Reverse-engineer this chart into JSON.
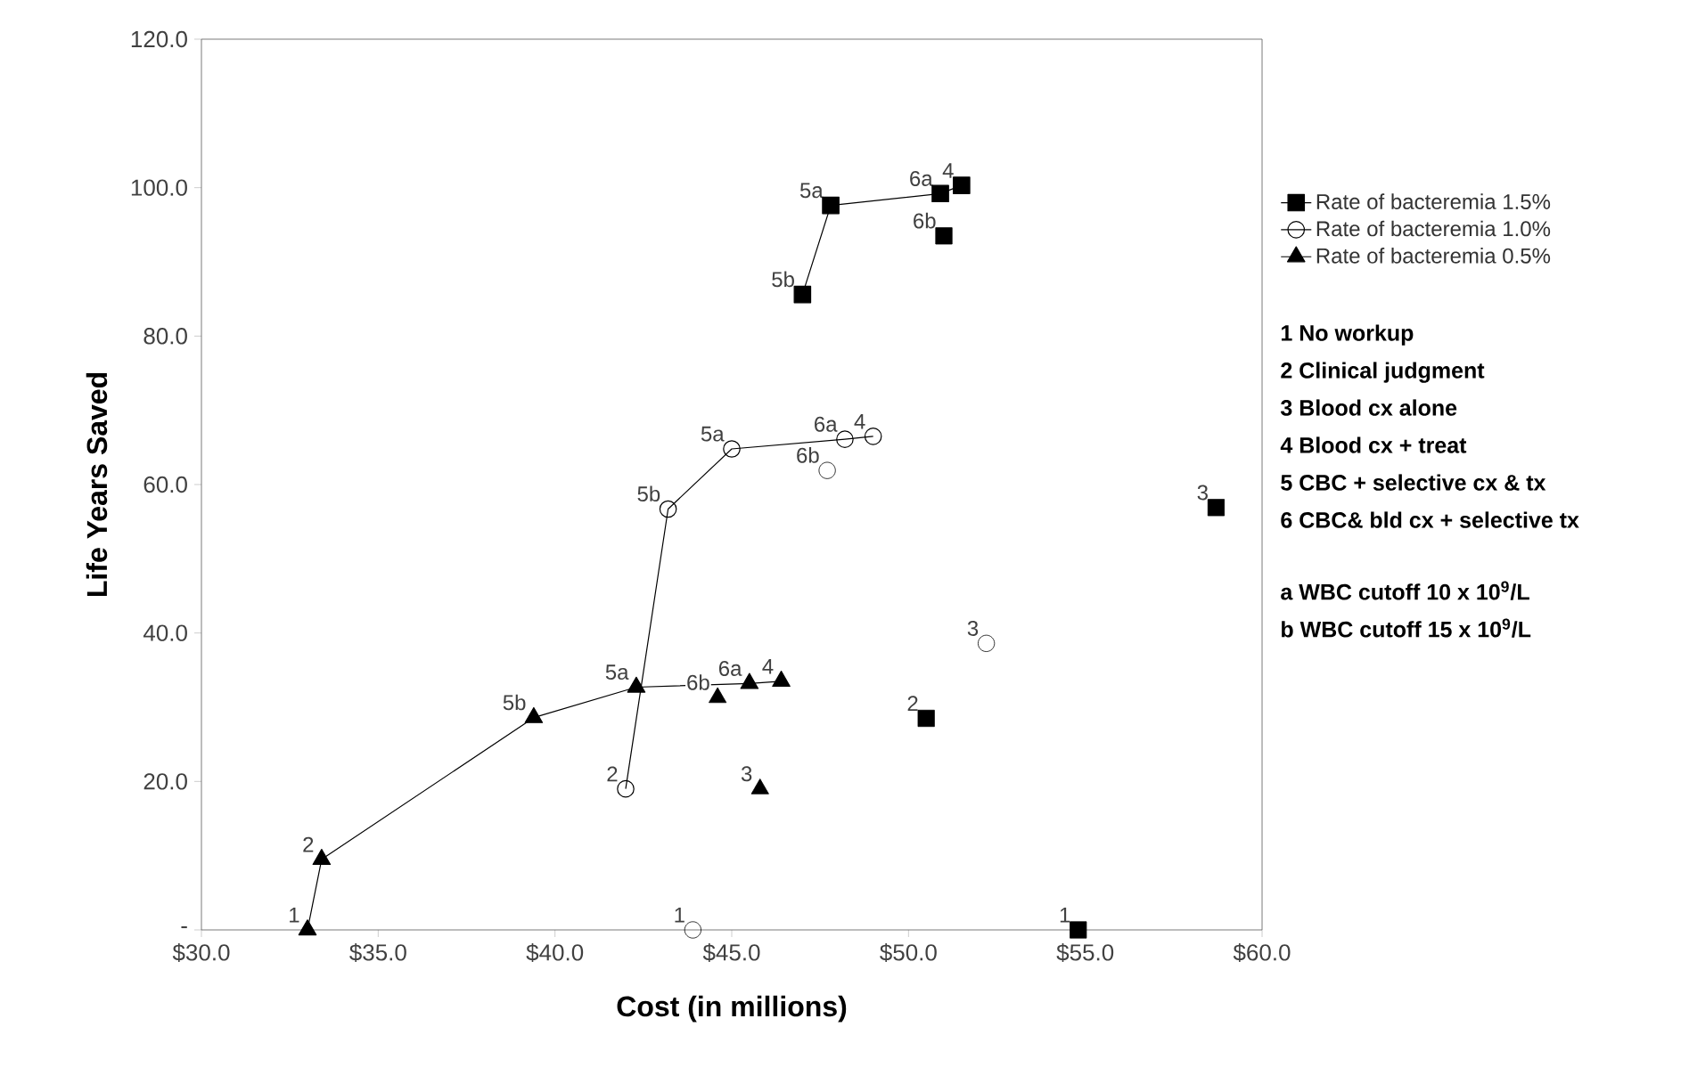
{
  "chart_data": {
    "type": "line",
    "xlabel": "Cost (in millions)",
    "ylabel": "Life Years Saved",
    "xlim": [
      30,
      60
    ],
    "ylim": [
      0,
      120
    ],
    "xticks": [
      {
        "value": 30,
        "label": "$30.0"
      },
      {
        "value": 35,
        "label": "$35.0"
      },
      {
        "value": 40,
        "label": "$40.0"
      },
      {
        "value": 45,
        "label": "$45.0"
      },
      {
        "value": 50,
        "label": "$50.0"
      },
      {
        "value": 55,
        "label": "$55.0"
      },
      {
        "value": 60,
        "label": "$60.0"
      }
    ],
    "yticks": [
      {
        "value": 0,
        "label": "-"
      },
      {
        "value": 20,
        "label": "20.0"
      },
      {
        "value": 40,
        "label": "40.0"
      },
      {
        "value": 60,
        "label": "60.0"
      },
      {
        "value": 80,
        "label": "80.0"
      },
      {
        "value": 100,
        "label": "100.0"
      },
      {
        "value": 120,
        "label": "120.0"
      }
    ],
    "legend": "right",
    "series": [
      {
        "name": "Rate of bacteremia 1.5%",
        "marker": "square",
        "color": "#000000",
        "x": [
          47.0,
          47.8,
          50.9,
          51.5
        ],
        "values": [
          85.6,
          97.6,
          99.2,
          100.3
        ]
      },
      {
        "name": "Rate of bacteremia 1.0%",
        "marker": "circle",
        "color": "#000000",
        "x": [
          42.0,
          43.2,
          45.0,
          48.2,
          49.0
        ],
        "values": [
          19.0,
          56.7,
          64.8,
          66.1,
          66.5
        ]
      },
      {
        "name": "Rate of bacteremia 0.5%",
        "marker": "triangle",
        "color": "#000000",
        "x": [
          33.0,
          33.4,
          39.4,
          42.3,
          45.5,
          46.4
        ],
        "values": [
          0,
          9.5,
          28.6,
          32.7,
          33.2,
          33.5
        ]
      },
      {
        "type": "scatter",
        "marker": "square",
        "color": "#000000",
        "x": [
          51.0,
          50.5,
          54.8,
          58.7
        ],
        "values": [
          93.5,
          28.5,
          0,
          56.9
        ]
      },
      {
        "type": "scatter",
        "marker": "circle",
        "color": "#000000",
        "x": [
          47.7,
          43.9,
          52.2
        ],
        "values": [
          61.9,
          0,
          38.6
        ]
      },
      {
        "type": "scatter",
        "marker": "triangle",
        "color": "#000000",
        "x": [
          44.6,
          45.8
        ],
        "values": [
          31.3,
          19.0
        ]
      }
    ],
    "annotations": [
      "1 No workup",
      "2 Clinical judgment",
      "3 Blood cx alone",
      "4 Blood cx + treat",
      "5 CBC + selective cx & tx",
      "6 CBC& bld cx + selective tx",
      "a WBC cutoff 10 x 10$^{9}$/L",
      "b WBC cutoff 15 x 10$^{9}$/L",
      {
        "text": "5b",
        "x": 47.0,
        "y": 85.6
      },
      {
        "text": "5a",
        "x": 47.8,
        "y": 97.6
      },
      {
        "text": "6a",
        "x": 50.9,
        "y": 99.2
      },
      {
        "text": "4",
        "x": 51.5,
        "y": 100.3
      },
      {
        "text": "6b",
        "x": 51.0,
        "y": 93.5
      },
      {
        "text": "2",
        "x": 50.5,
        "y": 28.5
      },
      {
        "text": "1",
        "x": 54.8,
        "y": 0
      },
      {
        "text": "3",
        "x": 58.7,
        "y": 56.9
      },
      {
        "text": "2",
        "x": 42.0,
        "y": 19.0
      },
      {
        "text": "5b",
        "x": 43.2,
        "y": 56.7
      },
      {
        "text": "5a",
        "x": 45.0,
        "y": 64.8
      },
      {
        "text": "6a",
        "x": 48.2,
        "y": 66.1
      },
      {
        "text": "4",
        "x": 49.0,
        "y": 66.5
      },
      {
        "text": "6b",
        "x": 47.7,
        "y": 61.9
      },
      {
        "text": "1",
        "x": 43.9,
        "y": 0
      },
      {
        "text": "3",
        "x": 52.2,
        "y": 38.6
      },
      {
        "text": "1",
        "x": 33.0,
        "y": 0
      },
      {
        "text": "2",
        "x": 33.4,
        "y": 9.5
      },
      {
        "text": "5b",
        "x": 39.4,
        "y": 28.6
      },
      {
        "text": "5a",
        "x": 42.3,
        "y": 32.7
      },
      {
        "text": "6a",
        "x": 45.5,
        "y": 33.2
      },
      {
        "text": "4",
        "x": 46.4,
        "y": 33.5
      },
      {
        "text": "6b",
        "x": 44.6,
        "y": 31.3
      },
      {
        "text": "3",
        "x": 45.8,
        "y": 19.0
      }
    ]
  }
}
